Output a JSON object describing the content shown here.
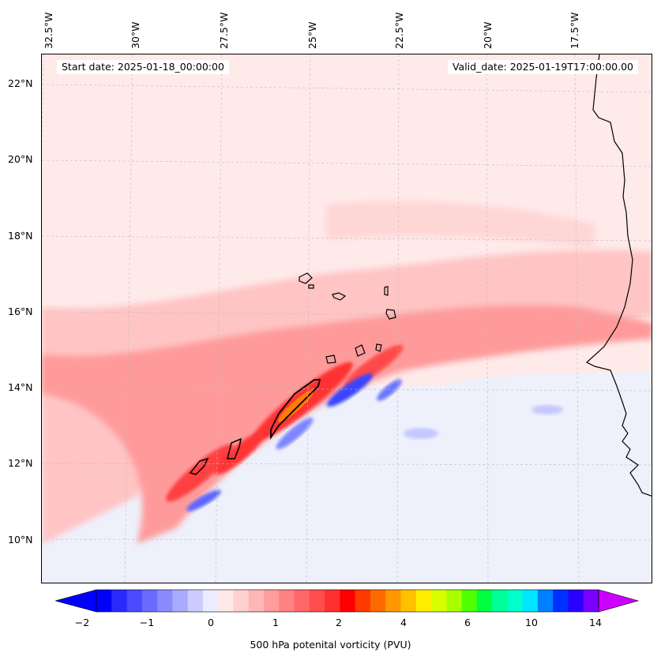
{
  "map": {
    "start_date_label": "Start date: 2025-01-18_00:00:00",
    "valid_date_label": "Valid_date: 2025-01-19T17:00:00.00",
    "longitude_labels": [
      "32.5°W",
      "30°W",
      "27.5°W",
      "25°W",
      "22.5°W",
      "20°W",
      "17.5°W"
    ],
    "latitude_labels": [
      "22°N",
      "20°N",
      "18°N",
      "16°N",
      "14°N",
      "12°N",
      "10°N"
    ],
    "colors": {
      "background_low": "#eef0fb",
      "pv_weak_positive": "#ffe4e4",
      "pv_moderate": "#ffb0b0",
      "pv_strong": "#ff5a5a",
      "pv_max": "#ff1a1a",
      "pv_negative": "#9fa6ff",
      "pv_negative_strong": "#3040ff",
      "coastline": "#000000"
    }
  },
  "colorbar": {
    "label": "500 hPa potenital vorticity (PVU)",
    "tick_labels": [
      "−2",
      "−1",
      "0",
      "1",
      "2",
      "4",
      "6",
      "10",
      "14"
    ],
    "colors": [
      "#0000ff",
      "#2a2aff",
      "#4a4aff",
      "#6a6aff",
      "#8a8aff",
      "#aaaaff",
      "#ccccff",
      "#ececff",
      "#ffe8e8",
      "#ffd0d0",
      "#ffb6b6",
      "#ff9c9c",
      "#ff8282",
      "#ff6868",
      "#ff4e4e",
      "#ff3030",
      "#ff0000",
      "#ff3a00",
      "#ff6a00",
      "#ff9800",
      "#ffc000",
      "#ffee00",
      "#d8ff00",
      "#a8ff00",
      "#50ff00",
      "#00ff40",
      "#00ff99",
      "#00ffcc",
      "#00e5ff",
      "#0080ff",
      "#0030ff",
      "#2a00ff",
      "#7a00ff"
    ],
    "extend_low_color": "#0000ff",
    "extend_high_color": "#cc00ff"
  }
}
